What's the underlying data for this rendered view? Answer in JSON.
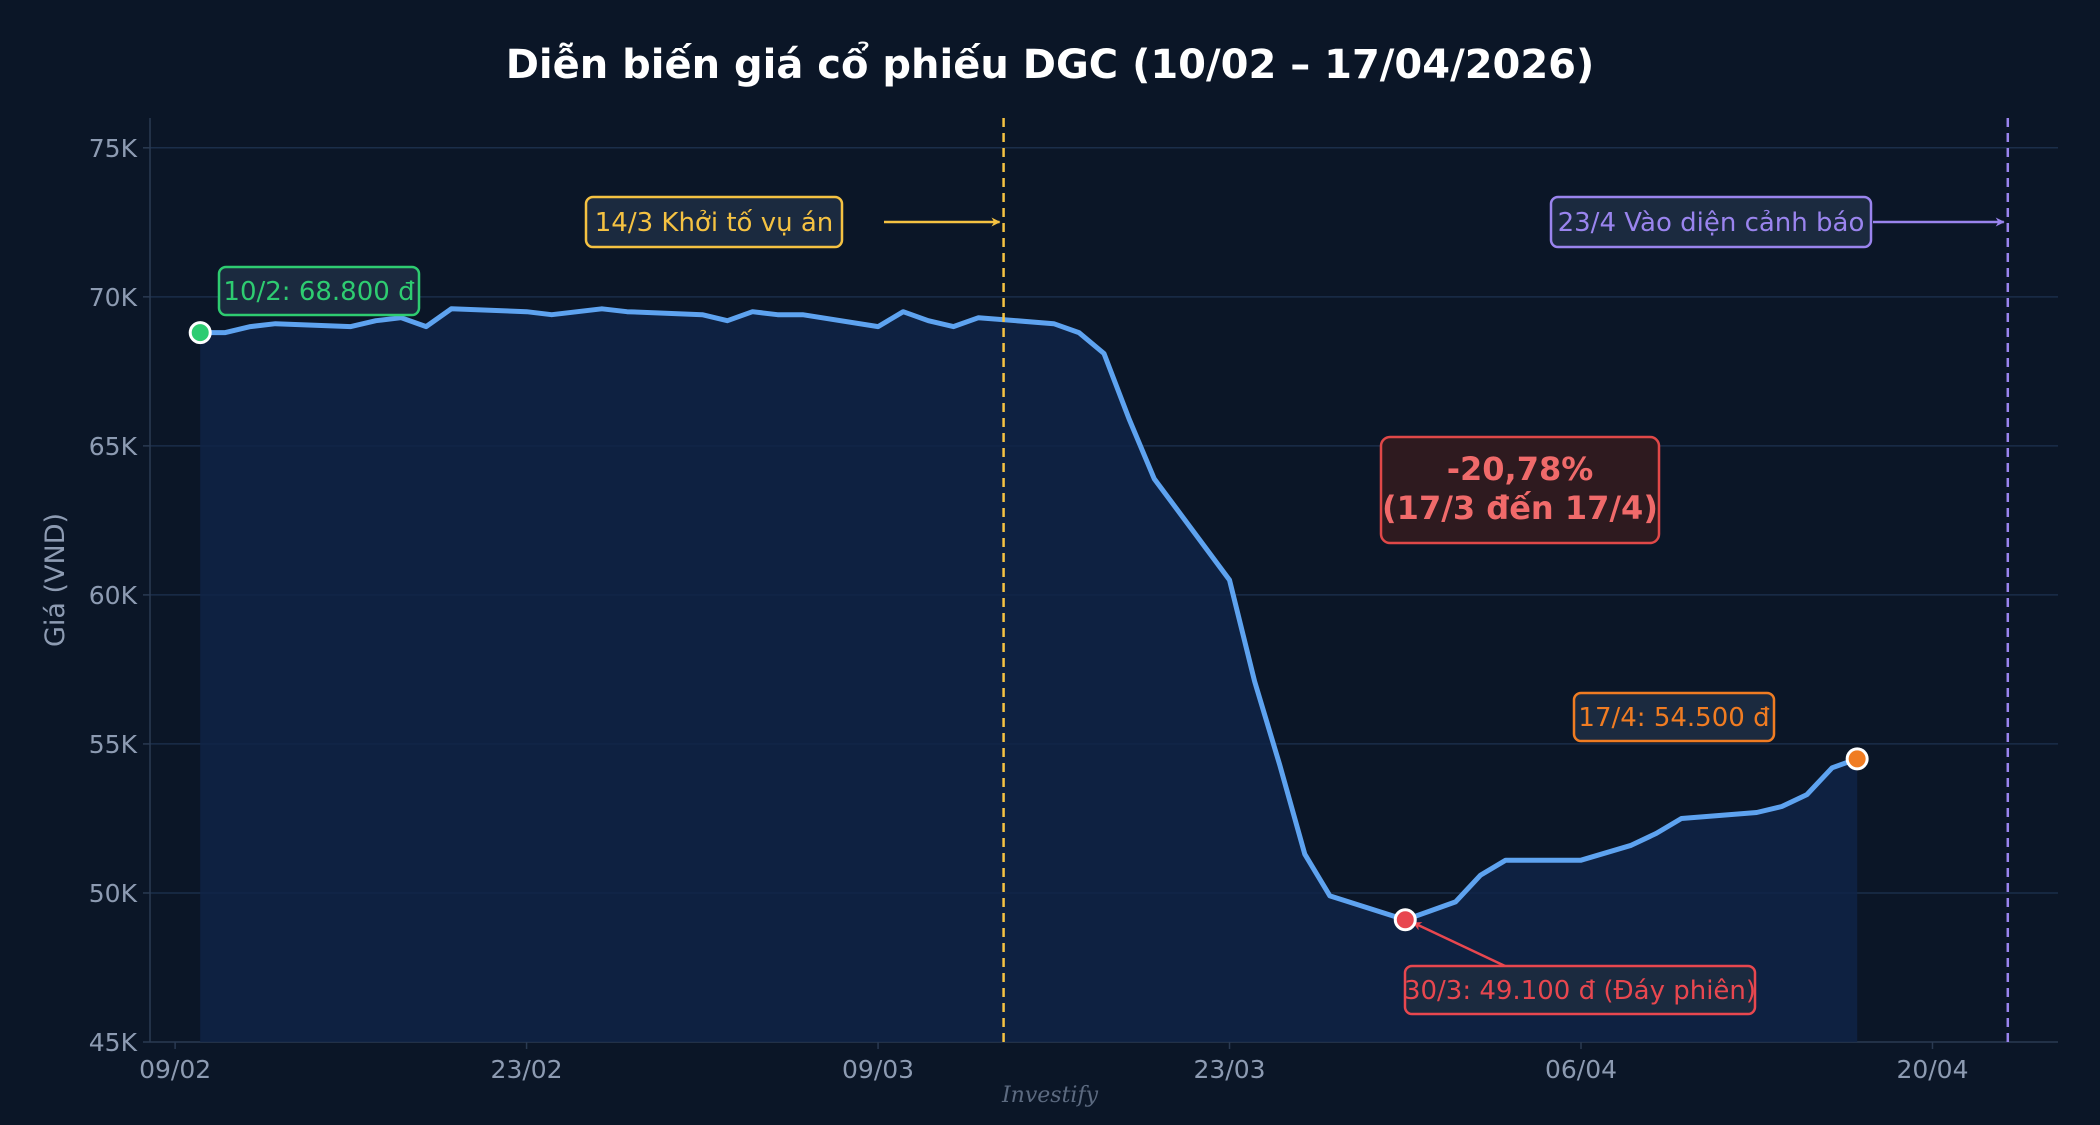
{
  "chart_data": {
    "type": "line",
    "title": "Diễn biến giá cổ phiếu DGC (10/02 – 17/04/2026)",
    "ylabel": "Giá (VND)",
    "xlabel": "",
    "x_range": [
      "2026-02-08",
      "2026-04-25"
    ],
    "ylim": [
      45000,
      76000
    ],
    "y_ticks": [
      45000,
      50000,
      55000,
      60000,
      65000,
      70000,
      75000
    ],
    "y_tick_labels": [
      "45K",
      "50K",
      "55K",
      "60K",
      "65K",
      "70K",
      "75K"
    ],
    "x_ticks": [
      "2026-02-09",
      "2026-02-23",
      "2026-03-09",
      "2026-03-23",
      "2026-04-06",
      "2026-04-20"
    ],
    "x_tick_labels": [
      "09/02",
      "23/02",
      "09/03",
      "23/03",
      "06/04",
      "20/04"
    ],
    "grid": true,
    "series": [
      {
        "color": "#5ea3f0",
        "points": [
          [
            "2026-02-10",
            68800
          ],
          [
            "2026-02-11",
            68800
          ],
          [
            "2026-02-12",
            69000
          ],
          [
            "2026-02-13",
            69100
          ],
          [
            "2026-02-16",
            69000
          ],
          [
            "2026-02-17",
            69200
          ],
          [
            "2026-02-18",
            69300
          ],
          [
            "2026-02-19",
            69000
          ],
          [
            "2026-02-20",
            69600
          ],
          [
            "2026-02-23",
            69500
          ],
          [
            "2026-02-24",
            69400
          ],
          [
            "2026-02-26",
            69600
          ],
          [
            "2026-02-27",
            69500
          ],
          [
            "2026-03-02",
            69400
          ],
          [
            "2026-03-03",
            69200
          ],
          [
            "2026-03-04",
            69500
          ],
          [
            "2026-03-05",
            69400
          ],
          [
            "2026-03-06",
            69400
          ],
          [
            "2026-03-09",
            69000
          ],
          [
            "2026-03-10",
            69500
          ],
          [
            "2026-03-11",
            69200
          ],
          [
            "2026-03-12",
            69000
          ],
          [
            "2026-03-13",
            69300
          ],
          [
            "2026-03-16",
            69100
          ],
          [
            "2026-03-17",
            68800
          ],
          [
            "2026-03-18",
            68100
          ],
          [
            "2026-03-19",
            65900
          ],
          [
            "2026-03-20",
            63900
          ],
          [
            "2026-03-23",
            60500
          ],
          [
            "2026-03-24",
            57100
          ],
          [
            "2026-03-25",
            54300
          ],
          [
            "2026-03-26",
            51300
          ],
          [
            "2026-03-27",
            49900
          ],
          [
            "2026-03-30",
            49100
          ],
          [
            "2026-03-31",
            49400
          ],
          [
            "2026-04-01",
            49700
          ],
          [
            "2026-04-02",
            50600
          ],
          [
            "2026-04-03",
            51100
          ],
          [
            "2026-04-06",
            51100
          ],
          [
            "2026-04-08",
            51600
          ],
          [
            "2026-04-09",
            52000
          ],
          [
            "2026-04-10",
            52500
          ],
          [
            "2026-04-13",
            52700
          ],
          [
            "2026-04-14",
            52900
          ],
          [
            "2026-04-15",
            53300
          ],
          [
            "2026-04-16",
            54200
          ],
          [
            "2026-04-17",
            54500
          ]
        ]
      }
    ],
    "markers": [
      {
        "x": "2026-02-10",
        "y": 68800,
        "color": "#2ecc71"
      },
      {
        "x": "2026-03-30",
        "y": 49100,
        "color": "#e8474f"
      },
      {
        "x": "2026-04-17",
        "y": 54500,
        "color": "#f07c22"
      }
    ],
    "vlines": [
      {
        "x": "2026-03-14",
        "color": "#f5c242",
        "label": "14/3 Khởi tố vụ án"
      },
      {
        "x": "2026-04-23",
        "color": "#9a84ee",
        "label": "23/4 Vào diện cảnh báo"
      }
    ],
    "annotations": [
      {
        "text": "10/2: 68.800 đ",
        "color": "#2ecc71"
      },
      {
        "text": "30/3: 49.100 đ (Đáy phiên)",
        "color": "#e8474f"
      },
      {
        "text": "17/4: 54.500 đ",
        "color": "#f07c22"
      }
    ],
    "summary_box": {
      "line1": "-20,78%",
      "line2": "(17/3 đến 17/4)",
      "color": "#e04848"
    },
    "watermark": "Investify"
  }
}
